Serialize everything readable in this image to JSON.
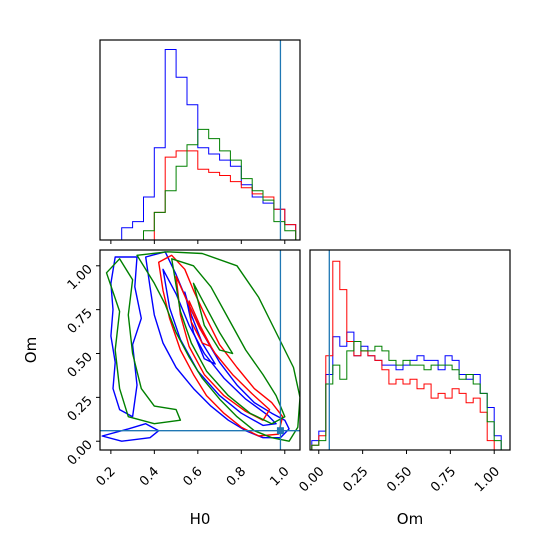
{
  "chart_data": {
    "type": "corner",
    "parameters": [
      "H0",
      "Om"
    ],
    "xlabel_h0": "H0",
    "xlabel_om": "Om",
    "ylabel_om": "Om",
    "h0_ticks": [
      "0.2",
      "0.4",
      "0.6",
      "0.8",
      "1.0"
    ],
    "om_ticks": [
      "0.00",
      "0.25",
      "0.50",
      "0.75",
      "1.00"
    ],
    "h0_range": [
      0.15,
      1.07
    ],
    "om_range": [
      -0.05,
      1.09
    ],
    "truth": {
      "H0": 0.98,
      "Om": 0.06,
      "color": "#1f77b4"
    },
    "colors": {
      "blue": "#0000ff",
      "red": "#ff0000",
      "green": "#008000"
    },
    "hist_h0": {
      "edges": [
        0.15,
        0.2,
        0.25,
        0.3,
        0.35,
        0.4,
        0.45,
        0.5,
        0.55,
        0.6,
        0.65,
        0.7,
        0.75,
        0.8,
        0.85,
        0.9,
        0.95,
        1.0,
        1.05
      ],
      "series": [
        {
          "color": "blue",
          "values": [
            0,
            0,
            0.4,
            0.6,
            1.4,
            3.0,
            6.2,
            5.3,
            4.4,
            3.0,
            2.8,
            2.6,
            2.4,
            1.8,
            1.4,
            1.2,
            1.0,
            0.5
          ]
        },
        {
          "color": "red",
          "values": [
            0,
            0,
            0,
            0,
            0,
            0.9,
            2.7,
            2.9,
            2.9,
            2.3,
            2.2,
            2.1,
            1.9,
            1.7,
            1.5,
            1.4,
            1.0,
            0.5
          ]
        },
        {
          "color": "green",
          "values": [
            0,
            0,
            0,
            0,
            0.3,
            0.9,
            1.6,
            2.4,
            3.1,
            3.6,
            3.3,
            2.9,
            2.6,
            2.0,
            1.6,
            1.3,
            0.6,
            0.3
          ]
        }
      ]
    },
    "hist_om": {
      "edges": [
        -0.04,
        0.0,
        0.04,
        0.08,
        0.12,
        0.16,
        0.2,
        0.24,
        0.28,
        0.32,
        0.36,
        0.4,
        0.44,
        0.48,
        0.52,
        0.56,
        0.6,
        0.64,
        0.68,
        0.72,
        0.76,
        0.8,
        0.84,
        0.88,
        0.92,
        0.96,
        1.0,
        1.04
      ],
      "series": [
        {
          "color": "blue",
          "values": [
            0.2,
            0.4,
            1.6,
            2.4,
            2.2,
            2.5,
            2.0,
            2.2,
            2.0,
            1.9,
            1.8,
            1.8,
            1.7,
            1.8,
            1.9,
            2.0,
            1.9,
            1.9,
            1.7,
            2.0,
            1.9,
            1.6,
            1.5,
            1.6,
            1.2,
            0.9,
            0.3
          ]
        },
        {
          "color": "red",
          "values": [
            0.1,
            0.3,
            2.0,
            4.0,
            3.4,
            2.3,
            2.0,
            2.1,
            2.0,
            1.9,
            1.7,
            1.4,
            1.5,
            1.4,
            1.5,
            1.3,
            1.4,
            1.1,
            1.2,
            1.1,
            1.3,
            1.2,
            1.0,
            1.1,
            0.8,
            0.2,
            0.0
          ]
        },
        {
          "color": "green",
          "values": [
            0.1,
            0.2,
            1.4,
            1.8,
            1.5,
            2.1,
            2.3,
            2.1,
            2.1,
            2.2,
            2.1,
            1.9,
            1.8,
            1.9,
            1.8,
            1.8,
            1.7,
            1.8,
            1.8,
            1.8,
            1.7,
            1.5,
            1.6,
            1.4,
            1.2,
            0.6,
            0.2
          ]
        }
      ]
    },
    "contours": [
      {
        "color": "blue",
        "points": [
          [
            0.36,
            1.05
          ],
          [
            0.45,
            1.08
          ],
          [
            0.5,
            0.95
          ],
          [
            0.55,
            0.8
          ],
          [
            0.62,
            0.62
          ],
          [
            0.7,
            0.45
          ],
          [
            0.78,
            0.32
          ],
          [
            0.86,
            0.22
          ],
          [
            0.94,
            0.16
          ],
          [
            1.0,
            0.12
          ],
          [
            1.02,
            0.07
          ],
          [
            0.98,
            0.02
          ],
          [
            0.9,
            0.02
          ],
          [
            0.82,
            0.06
          ],
          [
            0.74,
            0.12
          ],
          [
            0.66,
            0.2
          ],
          [
            0.58,
            0.3
          ],
          [
            0.5,
            0.42
          ],
          [
            0.44,
            0.56
          ],
          [
            0.4,
            0.72
          ],
          [
            0.38,
            0.88
          ],
          [
            0.36,
            1.05
          ]
        ]
      },
      {
        "color": "blue",
        "points": [
          [
            0.44,
            0.98
          ],
          [
            0.5,
            0.84
          ],
          [
            0.56,
            0.66
          ],
          [
            0.63,
            0.5
          ],
          [
            0.72,
            0.36
          ],
          [
            0.82,
            0.24
          ],
          [
            0.92,
            0.15
          ],
          [
            0.96,
            0.1
          ],
          [
            0.9,
            0.09
          ],
          [
            0.8,
            0.16
          ],
          [
            0.7,
            0.26
          ],
          [
            0.6,
            0.4
          ],
          [
            0.52,
            0.58
          ],
          [
            0.47,
            0.76
          ],
          [
            0.44,
            0.98
          ]
        ]
      },
      {
        "color": "blue",
        "points": [
          [
            0.54,
            0.85
          ],
          [
            0.57,
            0.72
          ],
          [
            0.62,
            0.56
          ],
          [
            0.68,
            0.44
          ],
          [
            0.63,
            0.47
          ],
          [
            0.58,
            0.62
          ],
          [
            0.54,
            0.85
          ]
        ]
      },
      {
        "color": "blue",
        "points": [
          [
            0.16,
            0.03
          ],
          [
            0.28,
            0.07
          ],
          [
            0.36,
            0.1
          ],
          [
            0.42,
            0.06
          ],
          [
            0.38,
            0.02
          ],
          [
            0.25,
            0.0
          ],
          [
            0.16,
            0.03
          ]
        ]
      },
      {
        "color": "blue",
        "points": [
          [
            0.22,
            1.05
          ],
          [
            0.2,
            0.9
          ],
          [
            0.21,
            0.75
          ],
          [
            0.2,
            0.6
          ],
          [
            0.22,
            0.45
          ],
          [
            0.21,
            0.3
          ],
          [
            0.24,
            0.18
          ],
          [
            0.3,
            0.14
          ],
          [
            0.32,
            0.32
          ],
          [
            0.3,
            0.55
          ],
          [
            0.34,
            0.7
          ],
          [
            0.31,
            0.88
          ],
          [
            0.32,
            1.05
          ],
          [
            0.22,
            1.05
          ]
        ]
      },
      {
        "color": "red",
        "points": [
          [
            0.42,
            1.02
          ],
          [
            0.48,
            1.06
          ],
          [
            0.54,
            0.98
          ],
          [
            0.58,
            0.86
          ],
          [
            0.64,
            0.7
          ],
          [
            0.7,
            0.55
          ],
          [
            0.78,
            0.42
          ],
          [
            0.86,
            0.3
          ],
          [
            0.94,
            0.22
          ],
          [
            0.99,
            0.14
          ],
          [
            0.97,
            0.04
          ],
          [
            0.88,
            0.03
          ],
          [
            0.8,
            0.08
          ],
          [
            0.72,
            0.16
          ],
          [
            0.64,
            0.26
          ],
          [
            0.58,
            0.38
          ],
          [
            0.52,
            0.52
          ],
          [
            0.47,
            0.7
          ],
          [
            0.44,
            0.86
          ],
          [
            0.42,
            1.02
          ]
        ]
      },
      {
        "color": "red",
        "points": [
          [
            0.5,
            0.94
          ],
          [
            0.55,
            0.8
          ],
          [
            0.61,
            0.64
          ],
          [
            0.68,
            0.5
          ],
          [
            0.76,
            0.38
          ],
          [
            0.85,
            0.27
          ],
          [
            0.93,
            0.18
          ],
          [
            0.9,
            0.12
          ],
          [
            0.82,
            0.17
          ],
          [
            0.72,
            0.26
          ],
          [
            0.63,
            0.38
          ],
          [
            0.56,
            0.54
          ],
          [
            0.52,
            0.72
          ],
          [
            0.5,
            0.94
          ]
        ]
      },
      {
        "color": "red",
        "points": [
          [
            0.56,
            0.8
          ],
          [
            0.61,
            0.66
          ],
          [
            0.66,
            0.54
          ],
          [
            0.62,
            0.56
          ],
          [
            0.57,
            0.68
          ],
          [
            0.56,
            0.8
          ]
        ]
      },
      {
        "color": "green",
        "points": [
          [
            0.32,
            1.06
          ],
          [
            0.46,
            1.08
          ],
          [
            0.62,
            1.07
          ],
          [
            0.78,
            1.0
          ],
          [
            0.88,
            0.82
          ],
          [
            0.96,
            0.62
          ],
          [
            1.04,
            0.42
          ],
          [
            1.07,
            0.25
          ],
          [
            1.06,
            0.08
          ],
          [
            1.02,
            0.0
          ],
          [
            0.94,
            0.02
          ],
          [
            0.86,
            0.06
          ],
          [
            0.78,
            0.14
          ],
          [
            0.7,
            0.24
          ],
          [
            0.62,
            0.36
          ],
          [
            0.56,
            0.48
          ],
          [
            0.5,
            0.62
          ],
          [
            0.45,
            0.78
          ],
          [
            0.4,
            0.9
          ],
          [
            0.32,
            1.06
          ]
        ]
      },
      {
        "color": "green",
        "points": [
          [
            0.48,
            1.04
          ],
          [
            0.58,
            1.0
          ],
          [
            0.66,
            0.88
          ],
          [
            0.74,
            0.7
          ],
          [
            0.82,
            0.52
          ],
          [
            0.9,
            0.38
          ],
          [
            0.96,
            0.26
          ],
          [
            1.0,
            0.14
          ],
          [
            0.94,
            0.1
          ],
          [
            0.84,
            0.16
          ],
          [
            0.74,
            0.26
          ],
          [
            0.64,
            0.4
          ],
          [
            0.57,
            0.56
          ],
          [
            0.52,
            0.74
          ],
          [
            0.48,
            1.04
          ]
        ]
      },
      {
        "color": "green",
        "points": [
          [
            0.58,
            0.9
          ],
          [
            0.64,
            0.76
          ],
          [
            0.7,
            0.62
          ],
          [
            0.76,
            0.5
          ],
          [
            0.7,
            0.52
          ],
          [
            0.63,
            0.66
          ],
          [
            0.58,
            0.9
          ]
        ]
      },
      {
        "color": "green",
        "points": [
          [
            0.18,
            0.96
          ],
          [
            0.24,
            1.04
          ],
          [
            0.3,
            0.92
          ],
          [
            0.28,
            0.72
          ],
          [
            0.3,
            0.5
          ],
          [
            0.34,
            0.3
          ],
          [
            0.4,
            0.2
          ],
          [
            0.5,
            0.18
          ],
          [
            0.52,
            0.12
          ],
          [
            0.4,
            0.1
          ],
          [
            0.28,
            0.14
          ],
          [
            0.24,
            0.3
          ],
          [
            0.22,
            0.52
          ],
          [
            0.24,
            0.74
          ],
          [
            0.18,
            0.96
          ]
        ]
      }
    ]
  }
}
